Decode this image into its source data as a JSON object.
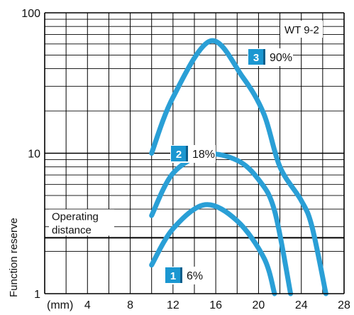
{
  "chart_data": {
    "type": "line",
    "model": "WT 9-2",
    "ylabel": "Function reserve",
    "x_unit": "(mm)",
    "x_ticks": [
      "4",
      "8",
      "12",
      "16",
      "20",
      "24",
      "28"
    ],
    "y_ticks": [
      "1",
      "10",
      "100"
    ],
    "xlim": [
      0,
      28
    ],
    "ylim": [
      1,
      100
    ],
    "y_scale": "log",
    "grid": true,
    "operating_distance_label": [
      "Operating",
      "distance"
    ],
    "operating_distance_level": 2.5,
    "line_color": "#2a9fd6",
    "badge_color": "#1b97d1",
    "series": [
      {
        "badge": "1",
        "name": "6%",
        "x": [
          10,
          12,
          15,
          18,
          20.5,
          21.5
        ],
        "y": [
          1.6,
          2.9,
          4.3,
          3.3,
          1.8,
          1.0
        ]
      },
      {
        "badge": "2",
        "name": "18%",
        "x": [
          10,
          12,
          15,
          18,
          20,
          21.5,
          23
        ],
        "y": [
          3.6,
          7.2,
          9.8,
          8.9,
          6.5,
          3.9,
          1.0
        ]
      },
      {
        "badge": "3",
        "name": "90%",
        "x": [
          10,
          12,
          15.5,
          18.5,
          20.5,
          22,
          24,
          25,
          26.3
        ],
        "y": [
          10,
          25,
          63,
          35,
          19,
          8,
          4.6,
          3.0,
          1.0
        ]
      }
    ]
  }
}
